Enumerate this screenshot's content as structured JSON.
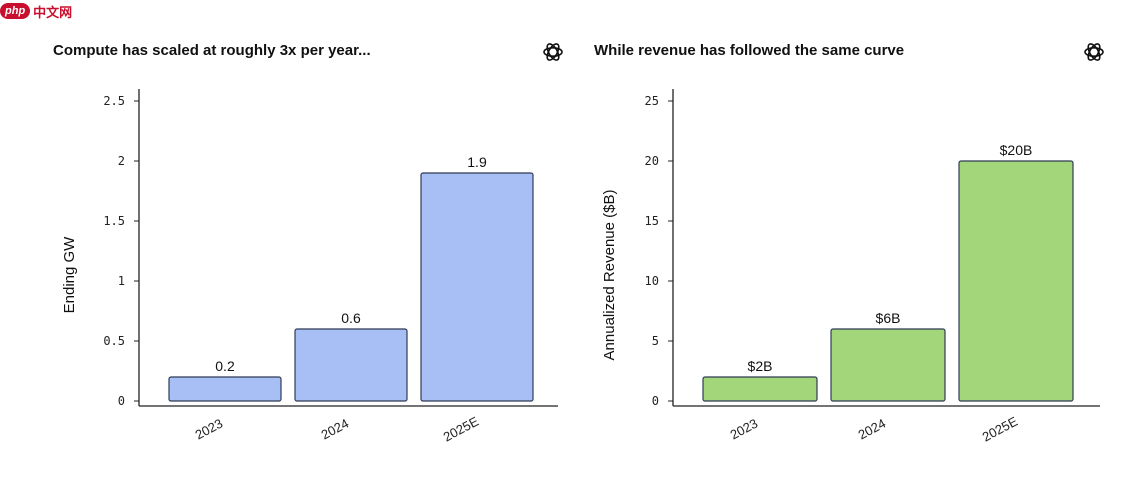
{
  "watermark": {
    "logo": "php",
    "text": "中文网"
  },
  "chart_data": [
    {
      "type": "bar",
      "title": "Compute has scaled at roughly 3x per year...",
      "ylabel": "Ending GW",
      "categories": [
        "2023",
        "2024",
        "2025E"
      ],
      "values": [
        0.2,
        0.6,
        1.9
      ],
      "data_labels": [
        "0.2",
        "0.6",
        "1.9"
      ],
      "yticks": [
        0,
        0.5,
        1,
        1.5,
        2,
        2.5
      ],
      "ytick_labels": [
        "0",
        "0.5",
        "1",
        "1.5",
        "2",
        "2.5"
      ],
      "ylim": [
        0,
        2.6
      ],
      "bar_color": "#a8bff5",
      "grid": false,
      "icon": "openai-logo-icon"
    },
    {
      "type": "bar",
      "title": "While revenue has followed the same curve",
      "ylabel": "Annualized Revenue ($B)",
      "categories": [
        "2023",
        "2024",
        "2025E"
      ],
      "values": [
        2,
        6,
        20
      ],
      "data_labels": [
        "$2B",
        "$6B",
        "$20B"
      ],
      "yticks": [
        0,
        5,
        10,
        15,
        20,
        25
      ],
      "ytick_labels": [
        "0",
        "5",
        "10",
        "15",
        "20",
        "25"
      ],
      "ylim": [
        0,
        26
      ],
      "bar_color": "#a3d67a",
      "grid": false,
      "icon": "openai-logo-icon"
    }
  ]
}
